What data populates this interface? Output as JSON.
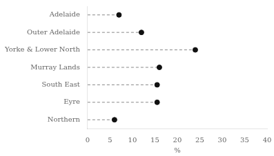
{
  "chart_data": {
    "type": "lollipop",
    "categories": [
      "Adelaide",
      "Outer Adelaide",
      "Yorke & Lower North",
      "Murray Lands",
      "South East",
      "Eyre",
      "Northern"
    ],
    "values": [
      7.0,
      12.0,
      24.0,
      16.0,
      15.5,
      15.5,
      6.0
    ],
    "color": "#111111",
    "marker": "circle",
    "line_style": "dashed",
    "xlabel": "%",
    "xlim": [
      0,
      40
    ],
    "xticks": [
      0,
      5,
      10,
      15,
      20,
      25,
      30,
      35,
      40
    ],
    "grid": false
  }
}
